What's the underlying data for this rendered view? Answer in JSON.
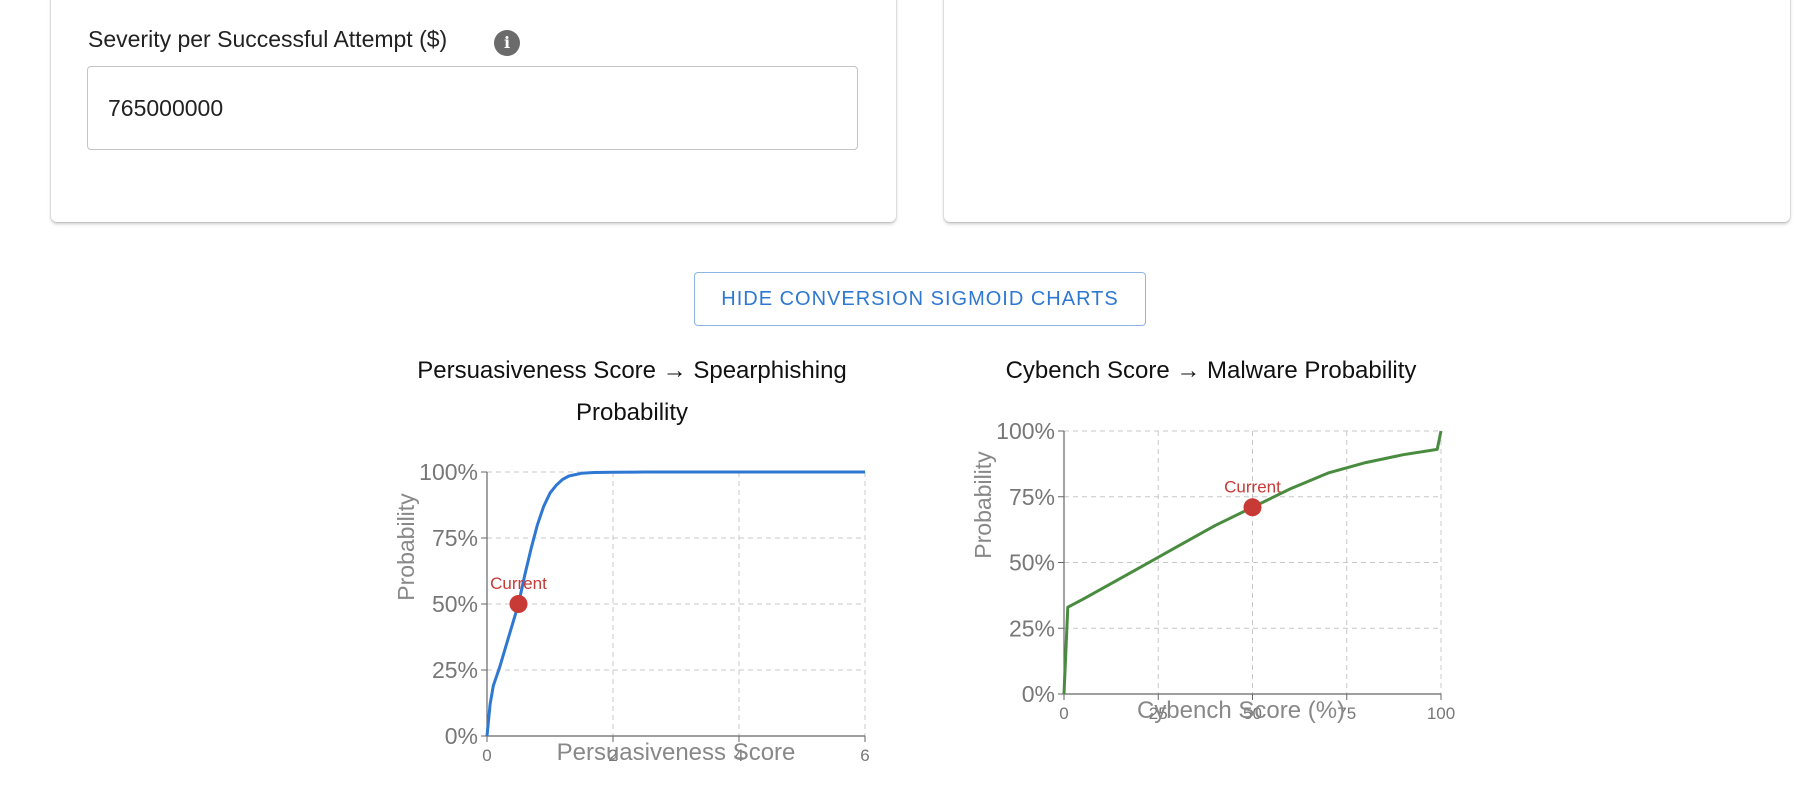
{
  "severity_field": {
    "label": "Severity per Successful Attempt ($)",
    "value": "765000000",
    "info_icon": "info-icon"
  },
  "toggle_button": {
    "label": "HIDE CONVERSION SIGMOID CHARTS"
  },
  "colors": {
    "persuasion_line": "#2e78d2",
    "cybench_line": "#4a8c3f",
    "current_marker": "#c83a36",
    "grid": "#c8c8c8",
    "axis_text": "#777777"
  },
  "chart_data": [
    {
      "type": "line",
      "title": "Persuasiveness Score → Spearphishing Probability",
      "xlabel": "Persuasiveness Score",
      "ylabel": "Probability",
      "xlim": [
        0,
        6
      ],
      "ylim": [
        0,
        1
      ],
      "x_ticks": [
        "0",
        "2",
        "4",
        "6"
      ],
      "y_ticks": [
        "0%",
        "25%",
        "50%",
        "75%",
        "100%"
      ],
      "grid": true,
      "series": [
        {
          "x": [
            0,
            0.05,
            0.1,
            0.2,
            0.3,
            0.4,
            0.5,
            0.6,
            0.7,
            0.8,
            0.9,
            1.0,
            1.1,
            1.2,
            1.3,
            1.5,
            1.7,
            2.0,
            2.5,
            3,
            4,
            5,
            6
          ],
          "values": [
            0,
            0.12,
            0.19,
            0.26,
            0.34,
            0.42,
            0.5,
            0.61,
            0.71,
            0.8,
            0.87,
            0.92,
            0.95,
            0.972,
            0.985,
            0.995,
            0.998,
            0.999,
            1,
            1,
            1,
            1,
            1
          ]
        }
      ],
      "annotations": [
        {
          "label": "Current",
          "x": 0.5,
          "y": 0.5
        }
      ]
    },
    {
      "type": "line",
      "title": "Cybench Score → Malware Probability",
      "xlabel": "Cybench Score (%)",
      "ylabel": "Probability",
      "xlim": [
        0,
        100
      ],
      "ylim": [
        0,
        1
      ],
      "x_ticks": [
        "0",
        "25",
        "50",
        "75",
        "100"
      ],
      "y_ticks": [
        "0%",
        "25%",
        "50%",
        "75%",
        "100%"
      ],
      "grid": true,
      "series": [
        {
          "x": [
            0,
            1,
            5,
            10,
            20,
            30,
            40,
            50,
            60,
            70,
            80,
            90,
            99,
            100
          ],
          "values": [
            0,
            0.33,
            0.36,
            0.4,
            0.48,
            0.56,
            0.64,
            0.71,
            0.78,
            0.84,
            0.88,
            0.91,
            0.93,
            1.0
          ]
        }
      ],
      "annotations": [
        {
          "label": "Current",
          "x": 50,
          "y": 0.71
        }
      ]
    }
  ]
}
